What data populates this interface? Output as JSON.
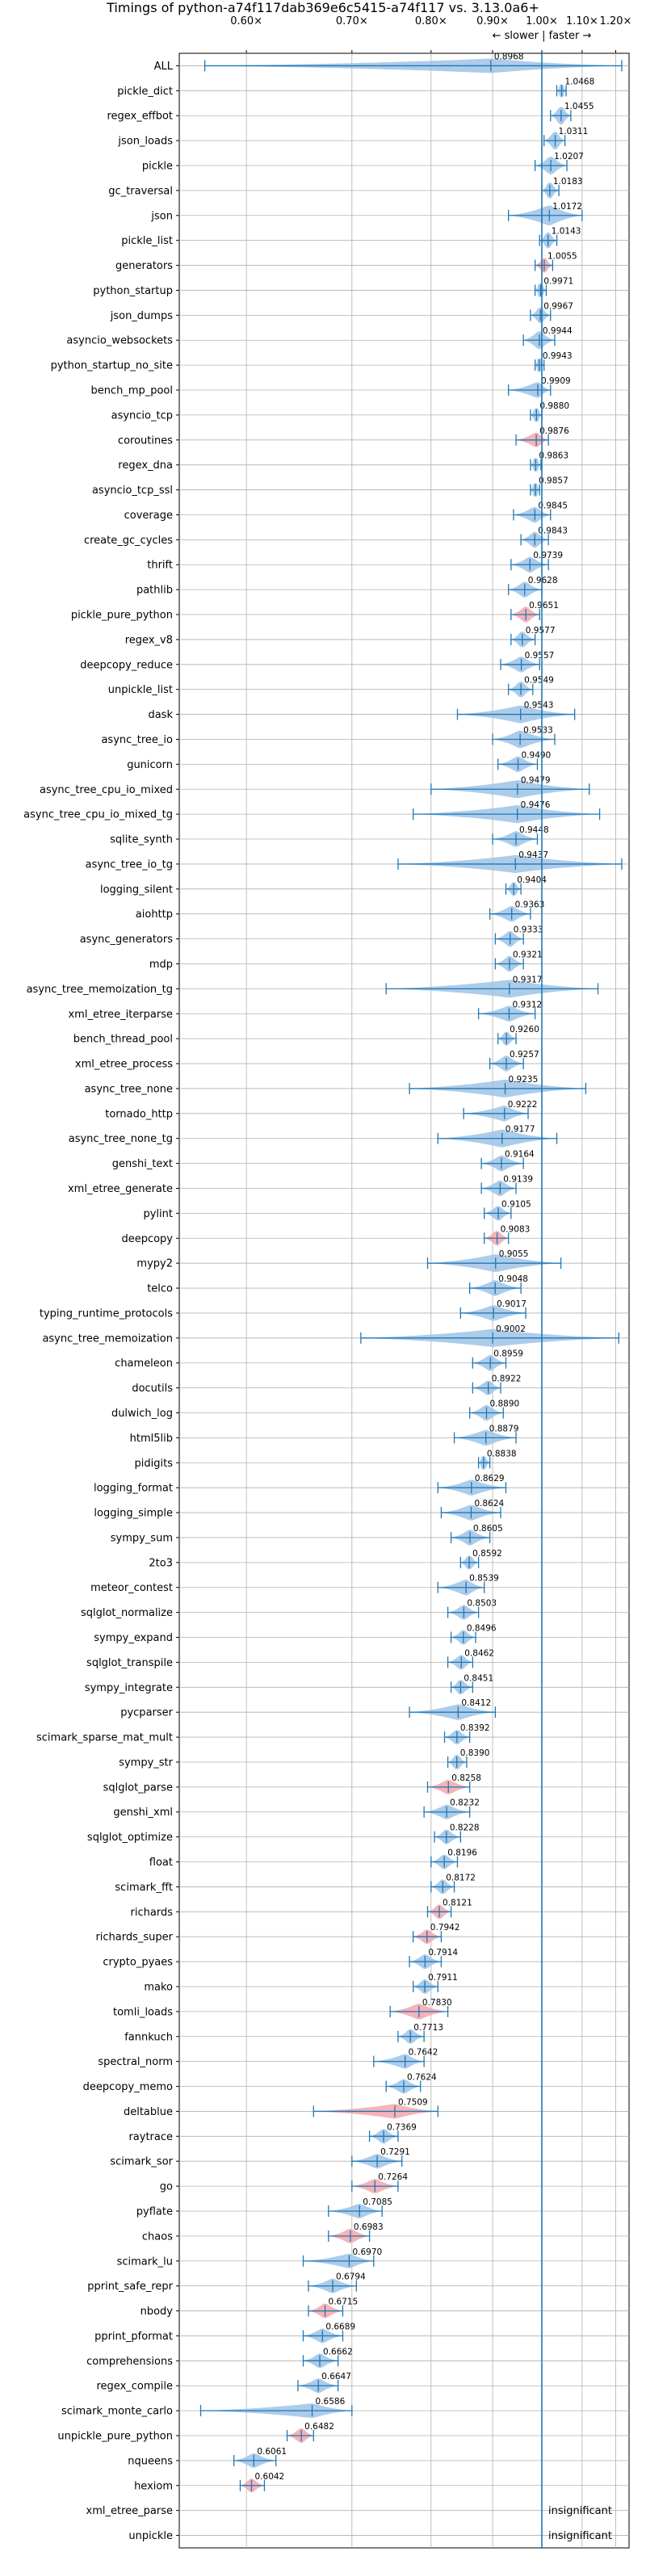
{
  "chart_data": {
    "type": "violin",
    "title": "Timings of python-a74f117dab369e6c5415-a74f117 vs. 3.13.0a6+",
    "direction_label": "← slower | faster →",
    "x_scale": "reciprocal",
    "xlim": [
      0.55,
      1.245
    ],
    "xticks": [
      0.6,
      0.7,
      0.8,
      0.9,
      1.0,
      1.1,
      1.2
    ],
    "xtick_labels": [
      "0.60×",
      "0.70×",
      "0.80×",
      "0.90×",
      "1.00×",
      "1.10×",
      "1.20×"
    ],
    "grid": true,
    "colors": {
      "violin": "#9dc3e6",
      "highlight": "#f4a6ac",
      "whisker": "#1f77b4",
      "reference": "#1f77b4",
      "grid": "#b0b0b0"
    },
    "benchmarks": [
      {
        "name": "ALL",
        "value": 0.8968,
        "min": 0.568,
        "max": 1.22,
        "spread": 0.012,
        "highlight": false
      },
      {
        "name": "pickle_dict",
        "value": 1.0468,
        "min": 1.035,
        "max": 1.058,
        "spread": 0.008,
        "highlight": false
      },
      {
        "name": "regex_effbot",
        "value": 1.0455,
        "min": 1.02,
        "max": 1.07,
        "spread": 0.02,
        "highlight": false
      },
      {
        "name": "json_loads",
        "value": 1.0311,
        "min": 1.005,
        "max": 1.055,
        "spread": 0.02,
        "highlight": false
      },
      {
        "name": "pickle",
        "value": 1.0207,
        "min": 0.985,
        "max": 1.06,
        "spread": 0.02,
        "highlight": false
      },
      {
        "name": "gc_traversal",
        "value": 1.0183,
        "min": 1.0,
        "max": 1.04,
        "spread": 0.015,
        "highlight": false
      },
      {
        "name": "json",
        "value": 1.0172,
        "min": 0.93,
        "max": 1.1,
        "spread": 0.025,
        "highlight": false
      },
      {
        "name": "pickle_list",
        "value": 1.0143,
        "min": 0.995,
        "max": 1.035,
        "spread": 0.015,
        "highlight": false
      },
      {
        "name": "generators",
        "value": 1.0055,
        "min": 0.985,
        "max": 1.025,
        "spread": 0.012,
        "highlight": true
      },
      {
        "name": "python_startup",
        "value": 0.9971,
        "min": 0.985,
        "max": 1.01,
        "spread": 0.01,
        "highlight": false
      },
      {
        "name": "json_dumps",
        "value": 0.9967,
        "min": 0.975,
        "max": 1.02,
        "spread": 0.015,
        "highlight": false
      },
      {
        "name": "asyncio_websockets",
        "value": 0.9944,
        "min": 0.96,
        "max": 1.03,
        "spread": 0.02,
        "highlight": false
      },
      {
        "name": "python_startup_no_site",
        "value": 0.9943,
        "min": 0.985,
        "max": 1.005,
        "spread": 0.01,
        "highlight": false
      },
      {
        "name": "bench_mp_pool",
        "value": 0.9909,
        "min": 0.93,
        "max": 1.02,
        "spread": 0.015,
        "highlight": false
      },
      {
        "name": "asyncio_tcp",
        "value": 0.988,
        "min": 0.975,
        "max": 1.0,
        "spread": 0.01,
        "highlight": false
      },
      {
        "name": "coroutines",
        "value": 0.9876,
        "min": 0.945,
        "max": 1.015,
        "spread": 0.012,
        "highlight": true
      },
      {
        "name": "regex_dna",
        "value": 0.9863,
        "min": 0.975,
        "max": 0.998,
        "spread": 0.01,
        "highlight": false
      },
      {
        "name": "asyncio_tcp_ssl",
        "value": 0.9857,
        "min": 0.975,
        "max": 0.995,
        "spread": 0.01,
        "highlight": false
      },
      {
        "name": "coverage",
        "value": 0.9845,
        "min": 0.94,
        "max": 1.02,
        "spread": 0.015,
        "highlight": false
      },
      {
        "name": "create_gc_cycles",
        "value": 0.9843,
        "min": 0.955,
        "max": 1.015,
        "spread": 0.015,
        "highlight": false
      },
      {
        "name": "thrift",
        "value": 0.9739,
        "min": 0.935,
        "max": 1.015,
        "spread": 0.015,
        "highlight": false
      },
      {
        "name": "pathlib",
        "value": 0.9628,
        "min": 0.93,
        "max": 1.0,
        "spread": 0.015,
        "highlight": false
      },
      {
        "name": "pickle_pure_python",
        "value": 0.9651,
        "min": 0.935,
        "max": 0.995,
        "spread": 0.015,
        "highlight": true
      },
      {
        "name": "regex_v8",
        "value": 0.9577,
        "min": 0.935,
        "max": 0.985,
        "spread": 0.015,
        "highlight": false
      },
      {
        "name": "deepcopy_reduce",
        "value": 0.9557,
        "min": 0.915,
        "max": 0.995,
        "spread": 0.015,
        "highlight": false
      },
      {
        "name": "unpickle_list",
        "value": 0.9549,
        "min": 0.93,
        "max": 0.98,
        "spread": 0.015,
        "highlight": false
      },
      {
        "name": "dask",
        "value": 0.9543,
        "min": 0.84,
        "max": 1.08,
        "spread": 0.02,
        "highlight": false
      },
      {
        "name": "async_tree_io",
        "value": 0.9533,
        "min": 0.9,
        "max": 1.03,
        "spread": 0.02,
        "highlight": false
      },
      {
        "name": "gunicorn",
        "value": 0.949,
        "min": 0.91,
        "max": 0.99,
        "spread": 0.015,
        "highlight": false
      },
      {
        "name": "async_tree_cpu_io_mixed",
        "value": 0.9479,
        "min": 0.8,
        "max": 1.12,
        "spread": 0.02,
        "highlight": false
      },
      {
        "name": "async_tree_cpu_io_mixed_tg",
        "value": 0.9476,
        "min": 0.775,
        "max": 1.15,
        "spread": 0.02,
        "highlight": false
      },
      {
        "name": "sqlite_synth",
        "value": 0.9448,
        "min": 0.9,
        "max": 0.99,
        "spread": 0.015,
        "highlight": false
      },
      {
        "name": "async_tree_io_tg",
        "value": 0.9437,
        "min": 0.755,
        "max": 1.22,
        "spread": 0.02,
        "highlight": false
      },
      {
        "name": "logging_silent",
        "value": 0.9404,
        "min": 0.925,
        "max": 0.955,
        "spread": 0.01,
        "highlight": false
      },
      {
        "name": "aiohttp",
        "value": 0.9363,
        "min": 0.895,
        "max": 0.975,
        "spread": 0.015,
        "highlight": false
      },
      {
        "name": "async_generators",
        "value": 0.9333,
        "min": 0.905,
        "max": 0.96,
        "spread": 0.015,
        "highlight": false
      },
      {
        "name": "mdp",
        "value": 0.9321,
        "min": 0.905,
        "max": 0.96,
        "spread": 0.015,
        "highlight": false
      },
      {
        "name": "async_tree_memoization_tg",
        "value": 0.9317,
        "min": 0.74,
        "max": 1.145,
        "spread": 0.02,
        "highlight": false
      },
      {
        "name": "xml_etree_iterparse",
        "value": 0.9312,
        "min": 0.875,
        "max": 0.985,
        "spread": 0.015,
        "highlight": false
      },
      {
        "name": "bench_thread_pool",
        "value": 0.926,
        "min": 0.91,
        "max": 0.945,
        "spread": 0.01,
        "highlight": false
      },
      {
        "name": "xml_etree_process",
        "value": 0.9257,
        "min": 0.895,
        "max": 0.96,
        "spread": 0.015,
        "highlight": false
      },
      {
        "name": "async_tree_none",
        "value": 0.9235,
        "min": 0.77,
        "max": 1.11,
        "spread": 0.02,
        "highlight": false
      },
      {
        "name": "tornado_http",
        "value": 0.9222,
        "min": 0.85,
        "max": 0.97,
        "spread": 0.015,
        "highlight": false
      },
      {
        "name": "async_tree_none_tg",
        "value": 0.9177,
        "min": 0.81,
        "max": 1.035,
        "spread": 0.02,
        "highlight": false
      },
      {
        "name": "genshi_text",
        "value": 0.9164,
        "min": 0.88,
        "max": 0.96,
        "spread": 0.015,
        "highlight": false
      },
      {
        "name": "xml_etree_generate",
        "value": 0.9139,
        "min": 0.88,
        "max": 0.945,
        "spread": 0.015,
        "highlight": false
      },
      {
        "name": "pylint",
        "value": 0.9105,
        "min": 0.885,
        "max": 0.935,
        "spread": 0.012,
        "highlight": false
      },
      {
        "name": "deepcopy",
        "value": 0.9083,
        "min": 0.885,
        "max": 0.93,
        "spread": 0.012,
        "highlight": true
      },
      {
        "name": "mypy2",
        "value": 0.9055,
        "min": 0.795,
        "max": 1.045,
        "spread": 0.02,
        "highlight": false
      },
      {
        "name": "telco",
        "value": 0.9048,
        "min": 0.86,
        "max": 0.955,
        "spread": 0.015,
        "highlight": false
      },
      {
        "name": "typing_runtime_protocols",
        "value": 0.9017,
        "min": 0.845,
        "max": 0.965,
        "spread": 0.015,
        "highlight": false
      },
      {
        "name": "async_tree_memoization",
        "value": 0.9002,
        "min": 0.71,
        "max": 1.21,
        "spread": 0.02,
        "highlight": false
      },
      {
        "name": "chameleon",
        "value": 0.8959,
        "min": 0.865,
        "max": 0.925,
        "spread": 0.015,
        "highlight": false
      },
      {
        "name": "docutils",
        "value": 0.8922,
        "min": 0.865,
        "max": 0.915,
        "spread": 0.012,
        "highlight": false
      },
      {
        "name": "dulwich_log",
        "value": 0.889,
        "min": 0.86,
        "max": 0.92,
        "spread": 0.015,
        "highlight": false
      },
      {
        "name": "html5lib",
        "value": 0.8879,
        "min": 0.835,
        "max": 0.945,
        "spread": 0.015,
        "highlight": false
      },
      {
        "name": "pidigits",
        "value": 0.8838,
        "min": 0.875,
        "max": 0.895,
        "spread": 0.01,
        "highlight": false
      },
      {
        "name": "logging_format",
        "value": 0.8629,
        "min": 0.81,
        "max": 0.925,
        "spread": 0.015,
        "highlight": false
      },
      {
        "name": "logging_simple",
        "value": 0.8624,
        "min": 0.815,
        "max": 0.915,
        "spread": 0.015,
        "highlight": false
      },
      {
        "name": "sympy_sum",
        "value": 0.8605,
        "min": 0.83,
        "max": 0.895,
        "spread": 0.015,
        "highlight": false
      },
      {
        "name": "2to3",
        "value": 0.8592,
        "min": 0.845,
        "max": 0.875,
        "spread": 0.01,
        "highlight": false
      },
      {
        "name": "meteor_contest",
        "value": 0.8539,
        "min": 0.81,
        "max": 0.885,
        "spread": 0.015,
        "highlight": false
      },
      {
        "name": "sqlglot_normalize",
        "value": 0.8503,
        "min": 0.825,
        "max": 0.875,
        "spread": 0.012,
        "highlight": false
      },
      {
        "name": "sympy_expand",
        "value": 0.8496,
        "min": 0.83,
        "max": 0.87,
        "spread": 0.012,
        "highlight": false
      },
      {
        "name": "sqlglot_transpile",
        "value": 0.8462,
        "min": 0.825,
        "max": 0.865,
        "spread": 0.012,
        "highlight": false
      },
      {
        "name": "sympy_integrate",
        "value": 0.8451,
        "min": 0.83,
        "max": 0.865,
        "spread": 0.012,
        "highlight": false
      },
      {
        "name": "pycparser",
        "value": 0.8412,
        "min": 0.77,
        "max": 0.905,
        "spread": 0.015,
        "highlight": false
      },
      {
        "name": "scimark_sparse_mat_mult",
        "value": 0.8392,
        "min": 0.82,
        "max": 0.86,
        "spread": 0.012,
        "highlight": false
      },
      {
        "name": "sympy_str",
        "value": 0.839,
        "min": 0.825,
        "max": 0.855,
        "spread": 0.012,
        "highlight": false
      },
      {
        "name": "sqlglot_parse",
        "value": 0.8258,
        "min": 0.795,
        "max": 0.86,
        "spread": 0.012,
        "highlight": true
      },
      {
        "name": "genshi_xml",
        "value": 0.8232,
        "min": 0.79,
        "max": 0.86,
        "spread": 0.012,
        "highlight": false
      },
      {
        "name": "sqlglot_optimize",
        "value": 0.8228,
        "min": 0.805,
        "max": 0.845,
        "spread": 0.012,
        "highlight": false
      },
      {
        "name": "float",
        "value": 0.8196,
        "min": 0.8,
        "max": 0.84,
        "spread": 0.012,
        "highlight": false
      },
      {
        "name": "scimark_fft",
        "value": 0.8172,
        "min": 0.8,
        "max": 0.835,
        "spread": 0.012,
        "highlight": false
      },
      {
        "name": "richards",
        "value": 0.8121,
        "min": 0.795,
        "max": 0.83,
        "spread": 0.012,
        "highlight": true
      },
      {
        "name": "richards_super",
        "value": 0.7942,
        "min": 0.775,
        "max": 0.815,
        "spread": 0.012,
        "highlight": true
      },
      {
        "name": "crypto_pyaes",
        "value": 0.7914,
        "min": 0.77,
        "max": 0.815,
        "spread": 0.012,
        "highlight": false
      },
      {
        "name": "mako",
        "value": 0.7911,
        "min": 0.775,
        "max": 0.81,
        "spread": 0.012,
        "highlight": false
      },
      {
        "name": "tomli_loads",
        "value": 0.783,
        "min": 0.745,
        "max": 0.825,
        "spread": 0.015,
        "highlight": true
      },
      {
        "name": "fannkuch",
        "value": 0.7713,
        "min": 0.755,
        "max": 0.79,
        "spread": 0.012,
        "highlight": false
      },
      {
        "name": "spectral_norm",
        "value": 0.7642,
        "min": 0.725,
        "max": 0.79,
        "spread": 0.012,
        "highlight": false
      },
      {
        "name": "deepcopy_memo",
        "value": 0.7624,
        "min": 0.74,
        "max": 0.785,
        "spread": 0.012,
        "highlight": false
      },
      {
        "name": "deltablue",
        "value": 0.7509,
        "min": 0.66,
        "max": 0.81,
        "spread": 0.012,
        "highlight": true
      },
      {
        "name": "raytrace",
        "value": 0.7369,
        "min": 0.72,
        "max": 0.755,
        "spread": 0.012,
        "highlight": false
      },
      {
        "name": "scimark_sor",
        "value": 0.7291,
        "min": 0.7,
        "max": 0.76,
        "spread": 0.012,
        "highlight": false
      },
      {
        "name": "go",
        "value": 0.7264,
        "min": 0.7,
        "max": 0.755,
        "spread": 0.012,
        "highlight": true
      },
      {
        "name": "pyflate",
        "value": 0.7085,
        "min": 0.675,
        "max": 0.735,
        "spread": 0.012,
        "highlight": false
      },
      {
        "name": "chaos",
        "value": 0.6983,
        "min": 0.675,
        "max": 0.72,
        "spread": 0.012,
        "highlight": true
      },
      {
        "name": "scimark_lu",
        "value": 0.697,
        "min": 0.65,
        "max": 0.725,
        "spread": 0.012,
        "highlight": false
      },
      {
        "name": "pprint_safe_repr",
        "value": 0.6794,
        "min": 0.655,
        "max": 0.705,
        "spread": 0.012,
        "highlight": false
      },
      {
        "name": "nbody",
        "value": 0.6715,
        "min": 0.655,
        "max": 0.69,
        "spread": 0.012,
        "highlight": true
      },
      {
        "name": "pprint_pformat",
        "value": 0.6689,
        "min": 0.65,
        "max": 0.69,
        "spread": 0.012,
        "highlight": false
      },
      {
        "name": "comprehensions",
        "value": 0.6662,
        "min": 0.65,
        "max": 0.685,
        "spread": 0.012,
        "highlight": false
      },
      {
        "name": "regex_compile",
        "value": 0.6647,
        "min": 0.645,
        "max": 0.685,
        "spread": 0.012,
        "highlight": false
      },
      {
        "name": "scimark_monte_carlo",
        "value": 0.6586,
        "min": 0.565,
        "max": 0.7,
        "spread": 0.012,
        "highlight": false
      },
      {
        "name": "unpickle_pure_python",
        "value": 0.6482,
        "min": 0.635,
        "max": 0.66,
        "spread": 0.012,
        "highlight": true
      },
      {
        "name": "nqueens",
        "value": 0.6061,
        "min": 0.59,
        "max": 0.625,
        "spread": 0.012,
        "highlight": false
      },
      {
        "name": "hexiom",
        "value": 0.6042,
        "min": 0.595,
        "max": 0.615,
        "spread": 0.01,
        "highlight": true
      },
      {
        "name": "xml_etree_parse",
        "value": null,
        "note": "insignificant"
      },
      {
        "name": "unpickle",
        "value": null,
        "note": "insignificant"
      }
    ]
  }
}
